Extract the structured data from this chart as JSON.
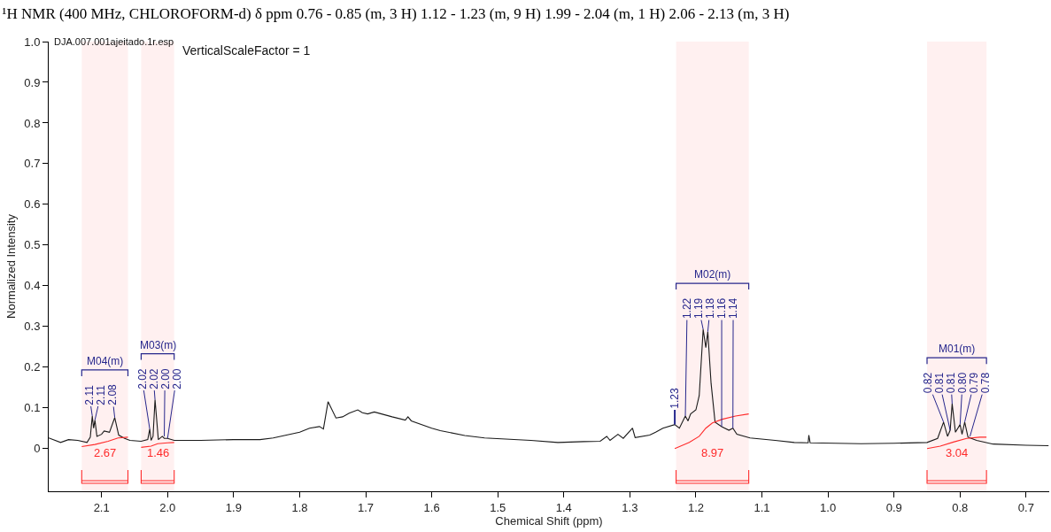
{
  "chart_data": {
    "type": "line",
    "title": "¹H NMR (400 MHz, CHLOROFORM-d) δ ppm 0.76 - 0.85 (m, 3 H) 1.12 - 1.23 (m, 9 H) 1.99 - 2.04 (m, 1 H) 2.06 - 2.13 (m, 3 H)",
    "xlabel": "Chemical Shift (ppm)",
    "ylabel": "Normalized Intensity",
    "xlim": [
      2.18,
      0.665
    ],
    "ylim": [
      -0.105,
      1.0
    ],
    "xticks": [
      2.1,
      {
        "value": 2,
        "label": "2.0"
      },
      1.9,
      1.8,
      1.7,
      1.6,
      1.5,
      1.4,
      1.3,
      1.2,
      1.1,
      {
        "value": 1,
        "label": "1.0"
      },
      0.9,
      0.8,
      0.7
    ],
    "yticks": [
      0,
      0.1,
      0.2,
      0.3,
      0.4,
      0.5,
      0.6,
      0.7,
      0.8,
      0.9,
      {
        "value": 1,
        "label": "1.0"
      }
    ],
    "grid": false,
    "marker": "none",
    "line_style": "solid",
    "series": [
      {
        "color": "#1a1a1a",
        "x": [
          2.18,
          2.162,
          2.15,
          2.136,
          2.122,
          2.117,
          2.114,
          2.112,
          2.11,
          2.107,
          2.1,
          2.096,
          2.088,
          2.08,
          2.074,
          2.065,
          2.057,
          2.04,
          2.03,
          2.027,
          2.025,
          2.022,
          2.019,
          2.014,
          2.008,
          2.005,
          2.0,
          1.99,
          1.95,
          1.9,
          1.86,
          1.84,
          1.82,
          1.8,
          1.785,
          1.77,
          1.764,
          1.757,
          1.745,
          1.735,
          1.725,
          1.712,
          1.705,
          1.697,
          1.687,
          1.66,
          1.64,
          1.636,
          1.631,
          1.6,
          1.587,
          1.55,
          1.52,
          1.45,
          1.409,
          1.37,
          1.345,
          1.335,
          1.33,
          1.318,
          1.31,
          1.296,
          1.292,
          1.27,
          1.261,
          1.25,
          1.232,
          1.225,
          1.216,
          1.212,
          1.208,
          1.2,
          1.195,
          1.189,
          1.185,
          1.182,
          1.177,
          1.171,
          1.161,
          1.15,
          1.144,
          1.138,
          1.118,
          1.08,
          1.051,
          1.03,
          1.029,
          1.027,
          0.95,
          0.9,
          0.85,
          0.834,
          0.825,
          0.819,
          0.815,
          0.812,
          0.807,
          0.8,
          0.797,
          0.793,
          0.788,
          0.775,
          0.75,
          0.7,
          0.666
        ],
        "values": [
          0.026,
          0.015,
          0.022,
          0.02,
          0.015,
          0.028,
          0.08,
          0.05,
          0.07,
          0.03,
          0.035,
          0.043,
          0.04,
          0.076,
          0.033,
          0.025,
          0.02,
          0.018,
          0.022,
          0.048,
          0.02,
          0.03,
          0.12,
          0.022,
          0.03,
          0.025,
          0.025,
          0.02,
          0.02,
          0.022,
          0.022,
          0.026,
          0.033,
          0.04,
          0.05,
          0.054,
          0.048,
          0.115,
          0.075,
          0.078,
          0.087,
          0.095,
          0.088,
          0.085,
          0.09,
          0.078,
          0.07,
          0.078,
          0.068,
          0.05,
          0.044,
          0.032,
          0.026,
          0.02,
          0.015,
          0.017,
          0.018,
          0.03,
          0.02,
          0.035,
          0.025,
          0.05,
          0.027,
          0.033,
          0.04,
          0.05,
          0.059,
          0.05,
          0.08,
          0.068,
          0.085,
          0.095,
          0.13,
          0.293,
          0.248,
          0.287,
          0.16,
          0.065,
          0.054,
          0.045,
          0.05,
          0.035,
          0.026,
          0.02,
          0.015,
          0.014,
          0.033,
          0.014,
          0.012,
          0.013,
          0.015,
          0.025,
          0.065,
          0.03,
          0.045,
          0.11,
          0.04,
          0.059,
          0.035,
          0.065,
          0.028,
          0.02,
          0.011,
          0.008,
          0.007
        ]
      },
      {
        "color": "#ff2a2a",
        "x": [
          2.13,
          2.11,
          2.09,
          2.075,
          2.06
        ],
        "values": [
          0.005,
          0.01,
          0.018,
          0.026,
          0.028
        ]
      },
      {
        "color": "#ff2a2a",
        "x": [
          2.04,
          2.025,
          2.015,
          2.0,
          1.99
        ],
        "values": [
          0.003,
          0.006,
          0.012,
          0.014,
          0.015
        ]
      },
      {
        "color": "#ff2a2a",
        "x": [
          1.232,
          1.21,
          1.195,
          1.185,
          1.175,
          1.16,
          1.14,
          1.12
        ],
        "values": [
          0.0,
          0.015,
          0.03,
          0.05,
          0.063,
          0.072,
          0.08,
          0.085
        ]
      },
      {
        "color": "#ff2a2a",
        "x": [
          0.85,
          0.83,
          0.81,
          0.79,
          0.77,
          0.76
        ],
        "values": [
          0.0,
          0.006,
          0.016,
          0.025,
          0.028,
          0.028
        ]
      }
    ],
    "bands": [
      {
        "axis": "x",
        "from": 2.13,
        "to": 2.06,
        "label": "2.67",
        "color": "#ff2a2a"
      },
      {
        "axis": "x",
        "from": 2.04,
        "to": 1.99,
        "label": "1.46",
        "color": "#ff2a2a"
      },
      {
        "axis": "x",
        "from": 1.23,
        "to": 1.12,
        "label": "8.97",
        "color": "#ff2a2a"
      },
      {
        "axis": "x",
        "from": 0.85,
        "to": 0.76,
        "label": "3.04",
        "color": "#ff2a2a"
      }
    ],
    "annotations": [
      "DJA.007.001ajeitado.1r.esp",
      "VerticalScaleFactor = 1",
      "M04(m)",
      "M03(m)",
      "M02(m)",
      "M01(m)",
      {
        "text": "2.11",
        "x": 2.114,
        "y": 0.08
      },
      {
        "text": "2.11",
        "x": 2.11,
        "y": 0.07
      },
      {
        "text": "2.08",
        "x": 2.08,
        "y": 0.076
      },
      {
        "text": "2.02",
        "x": 2.027,
        "y": 0.048
      },
      {
        "text": "2.02",
        "x": 2.019,
        "y": 0.12
      },
      {
        "text": "2.00",
        "x": 2.005,
        "y": 0.03
      },
      {
        "text": "2.00",
        "x": 2.0,
        "y": 0.025
      },
      {
        "text": "1.23",
        "x": 1.232,
        "y": 0.059
      },
      {
        "text": "1.22",
        "x": 1.216,
        "y": 0.08
      },
      {
        "text": "1.19",
        "x": 1.189,
        "y": 0.293
      },
      {
        "text": "1.18",
        "x": 1.182,
        "y": 0.287
      },
      {
        "text": "1.16",
        "x": 1.161,
        "y": 0.054
      },
      {
        "text": "1.14",
        "x": 1.144,
        "y": 0.05
      },
      {
        "text": "0.82",
        "x": 0.825,
        "y": 0.065
      },
      {
        "text": "0.81",
        "x": 0.815,
        "y": 0.045
      },
      {
        "text": "0.81",
        "x": 0.812,
        "y": 0.11
      },
      {
        "text": "0.80",
        "x": 0.8,
        "y": 0.059
      },
      {
        "text": "0.79",
        "x": 0.793,
        "y": 0.065
      },
      {
        "text": "0.78",
        "x": 0.785,
        "y": 0.03
      }
    ]
  }
}
